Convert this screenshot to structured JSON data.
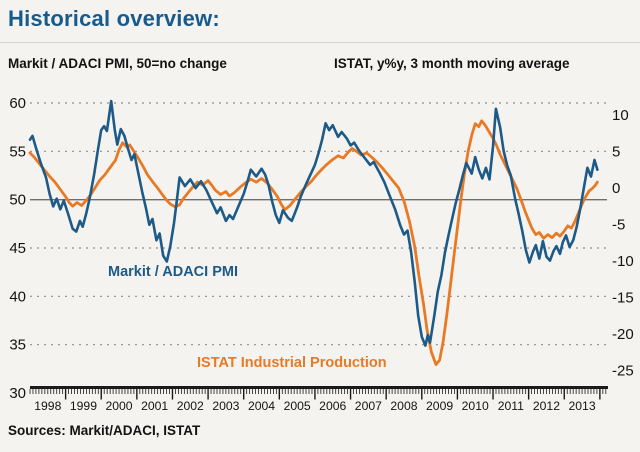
{
  "title": "Historical overview:",
  "subtitle_left": "Markit / ADACI PMI, 50=no change",
  "subtitle_right": "ISTAT, y%y, 3 month moving average",
  "footer": "Sources: Markit/ADACI, ISTAT",
  "colors": {
    "title": "#175a8c",
    "pmi_line": "#1d5a87",
    "istat_line": "#e87a26",
    "grid_dotted": "#8f8f8f",
    "grid_solid": "#6e6e6e",
    "axis": "#1a1a1a",
    "tick_text": "#141414",
    "background": "#f4f3f0"
  },
  "chart_data": {
    "type": "line",
    "title": "Historical overview",
    "xlabel": "",
    "ylabel_left": "Markit / ADACI PMI, 50=no change",
    "ylabel_right": "ISTAT, y%y, 3 month moving average",
    "grid": "horizontal-dotted",
    "legend_position": "inline-annotations",
    "x_axis": {
      "start": 1998.0,
      "end": 2014.2,
      "year_labels": [
        "1998",
        "1999",
        "2000",
        "2001",
        "2002",
        "2003",
        "2004",
        "2005",
        "2006",
        "2007",
        "2008",
        "2009",
        "2010",
        "2011",
        "2012",
        "2013"
      ]
    },
    "left_axis": {
      "ticks": [
        60,
        55,
        50,
        45,
        40,
        35,
        30
      ],
      "range": [
        30,
        60
      ],
      "gridlines_dotted": [
        60,
        55,
        45,
        40,
        35
      ],
      "gridline_solid": 50
    },
    "right_axis": {
      "ticks": [
        10,
        5,
        0,
        -5,
        -10,
        -15,
        -20,
        -25
      ],
      "range": [
        -25,
        10
      ],
      "top_value": 11.64,
      "bottom_value": -28.1
    },
    "series": [
      {
        "name": "Markit / ADACI PMI",
        "axis": "left",
        "color": "#1d5a87",
        "points": [
          [
            1998.0,
            56.2
          ],
          [
            1998.07,
            56.6
          ],
          [
            1998.18,
            55.2
          ],
          [
            1998.3,
            53.8
          ],
          [
            1998.45,
            52.3
          ],
          [
            1998.55,
            50.6
          ],
          [
            1998.65,
            49.3
          ],
          [
            1998.75,
            50.1
          ],
          [
            1998.85,
            49.0
          ],
          [
            1998.95,
            49.9
          ],
          [
            1999.08,
            48.4
          ],
          [
            1999.2,
            47.0
          ],
          [
            1999.3,
            46.7
          ],
          [
            1999.4,
            47.8
          ],
          [
            1999.48,
            47.2
          ],
          [
            1999.58,
            48.6
          ],
          [
            1999.68,
            50.2
          ],
          [
            1999.8,
            52.6
          ],
          [
            1999.9,
            55.0
          ],
          [
            2000.0,
            57.2
          ],
          [
            2000.08,
            57.6
          ],
          [
            2000.16,
            57.1
          ],
          [
            2000.28,
            60.2
          ],
          [
            2000.38,
            57.2
          ],
          [
            2000.45,
            55.7
          ],
          [
            2000.55,
            57.3
          ],
          [
            2000.65,
            56.6
          ],
          [
            2000.75,
            55.3
          ],
          [
            2000.85,
            54.1
          ],
          [
            2000.93,
            54.7
          ],
          [
            2001.05,
            52.6
          ],
          [
            2001.15,
            50.8
          ],
          [
            2001.25,
            49.2
          ],
          [
            2001.35,
            47.4
          ],
          [
            2001.44,
            48.0
          ],
          [
            2001.55,
            45.8
          ],
          [
            2001.64,
            46.5
          ],
          [
            2001.74,
            44.2
          ],
          [
            2001.84,
            43.6
          ],
          [
            2001.94,
            45.2
          ],
          [
            2002.04,
            47.5
          ],
          [
            2002.12,
            49.8
          ],
          [
            2002.2,
            52.3
          ],
          [
            2002.35,
            51.4
          ],
          [
            2002.5,
            52.1
          ],
          [
            2002.65,
            51.2
          ],
          [
            2002.8,
            51.9
          ],
          [
            2002.95,
            51.0
          ],
          [
            2003.1,
            49.8
          ],
          [
            2003.25,
            48.6
          ],
          [
            2003.35,
            49.2
          ],
          [
            2003.5,
            47.8
          ],
          [
            2003.6,
            48.4
          ],
          [
            2003.7,
            48.0
          ],
          [
            2003.85,
            49.3
          ],
          [
            2004.0,
            50.6
          ],
          [
            2004.1,
            51.8
          ],
          [
            2004.2,
            53.1
          ],
          [
            2004.35,
            52.4
          ],
          [
            2004.5,
            53.2
          ],
          [
            2004.6,
            52.6
          ],
          [
            2004.7,
            51.5
          ],
          [
            2004.8,
            49.8
          ],
          [
            2004.9,
            48.4
          ],
          [
            2005.0,
            47.6
          ],
          [
            2005.1,
            48.9
          ],
          [
            2005.25,
            48.1
          ],
          [
            2005.35,
            47.8
          ],
          [
            2005.5,
            49.2
          ],
          [
            2005.6,
            50.3
          ],
          [
            2005.7,
            51.2
          ],
          [
            2005.8,
            52.0
          ],
          [
            2005.9,
            52.8
          ],
          [
            2006.0,
            53.6
          ],
          [
            2006.1,
            54.8
          ],
          [
            2006.2,
            56.2
          ],
          [
            2006.3,
            57.9
          ],
          [
            2006.4,
            57.2
          ],
          [
            2006.5,
            57.7
          ],
          [
            2006.65,
            56.5
          ],
          [
            2006.75,
            57.0
          ],
          [
            2006.9,
            56.3
          ],
          [
            2007.0,
            55.6
          ],
          [
            2007.1,
            55.9
          ],
          [
            2007.25,
            55.0
          ],
          [
            2007.4,
            54.3
          ],
          [
            2007.55,
            53.6
          ],
          [
            2007.65,
            53.9
          ],
          [
            2007.8,
            52.9
          ],
          [
            2007.95,
            51.8
          ],
          [
            2008.1,
            50.4
          ],
          [
            2008.25,
            49.0
          ],
          [
            2008.4,
            47.3
          ],
          [
            2008.5,
            46.4
          ],
          [
            2008.6,
            46.8
          ],
          [
            2008.7,
            44.6
          ],
          [
            2008.8,
            41.5
          ],
          [
            2008.9,
            38.0
          ],
          [
            2009.0,
            35.8
          ],
          [
            2009.1,
            34.9
          ],
          [
            2009.17,
            36.0
          ],
          [
            2009.23,
            35.2
          ],
          [
            2009.35,
            38.0
          ],
          [
            2009.45,
            40.5
          ],
          [
            2009.55,
            42.2
          ],
          [
            2009.65,
            44.5
          ],
          [
            2009.75,
            46.3
          ],
          [
            2009.85,
            48.0
          ],
          [
            2009.95,
            49.6
          ],
          [
            2010.05,
            51.0
          ],
          [
            2010.15,
            52.5
          ],
          [
            2010.25,
            53.8
          ],
          [
            2010.4,
            52.7
          ],
          [
            2010.5,
            54.4
          ],
          [
            2010.6,
            53.1
          ],
          [
            2010.7,
            52.2
          ],
          [
            2010.8,
            53.3
          ],
          [
            2010.9,
            52.1
          ],
          [
            2011.0,
            55.5
          ],
          [
            2011.08,
            59.4
          ],
          [
            2011.2,
            57.5
          ],
          [
            2011.3,
            55.0
          ],
          [
            2011.4,
            53.5
          ],
          [
            2011.5,
            52.5
          ],
          [
            2011.62,
            50.1
          ],
          [
            2011.72,
            48.5
          ],
          [
            2011.82,
            46.8
          ],
          [
            2011.92,
            44.8
          ],
          [
            2012.02,
            43.5
          ],
          [
            2012.12,
            44.6
          ],
          [
            2012.2,
            45.3
          ],
          [
            2012.3,
            43.9
          ],
          [
            2012.4,
            45.7
          ],
          [
            2012.5,
            44.1
          ],
          [
            2012.6,
            43.7
          ],
          [
            2012.7,
            44.7
          ],
          [
            2012.78,
            45.2
          ],
          [
            2012.88,
            44.4
          ],
          [
            2012.96,
            45.6
          ],
          [
            2013.05,
            46.3
          ],
          [
            2013.15,
            45.1
          ],
          [
            2013.25,
            45.8
          ],
          [
            2013.35,
            47.2
          ],
          [
            2013.45,
            49.1
          ],
          [
            2013.55,
            51.2
          ],
          [
            2013.65,
            53.3
          ],
          [
            2013.75,
            52.4
          ],
          [
            2013.85,
            54.1
          ],
          [
            2013.93,
            53.1
          ]
        ]
      },
      {
        "name": "ISTAT Industrial Production",
        "axis": "right",
        "color": "#e87a26",
        "points": [
          [
            1998.0,
            4.8
          ],
          [
            1998.12,
            4.2
          ],
          [
            1998.25,
            3.4
          ],
          [
            1998.4,
            2.5
          ],
          [
            1998.55,
            1.6
          ],
          [
            1998.7,
            0.8
          ],
          [
            1998.85,
            -0.2
          ],
          [
            1999.0,
            -1.2
          ],
          [
            1999.1,
            -2.0
          ],
          [
            1999.2,
            -2.5
          ],
          [
            1999.32,
            -2.0
          ],
          [
            1999.45,
            -2.4
          ],
          [
            1999.6,
            -1.6
          ],
          [
            1999.72,
            -0.8
          ],
          [
            1999.85,
            0.2
          ],
          [
            1999.95,
            1.0
          ],
          [
            2000.1,
            1.8
          ],
          [
            2000.25,
            2.8
          ],
          [
            2000.4,
            3.8
          ],
          [
            2000.5,
            5.2
          ],
          [
            2000.6,
            6.2
          ],
          [
            2000.72,
            5.6
          ],
          [
            2000.8,
            5.9
          ],
          [
            2000.92,
            5.0
          ],
          [
            2001.05,
            4.0
          ],
          [
            2001.18,
            2.9
          ],
          [
            2001.3,
            1.8
          ],
          [
            2001.45,
            0.8
          ],
          [
            2001.58,
            0.0
          ],
          [
            2001.7,
            -0.8
          ],
          [
            2001.82,
            -1.6
          ],
          [
            2001.94,
            -2.2
          ],
          [
            2002.08,
            -2.6
          ],
          [
            2002.2,
            -2.3
          ],
          [
            2002.3,
            -1.5
          ],
          [
            2002.45,
            -0.6
          ],
          [
            2002.6,
            0.3
          ],
          [
            2002.7,
            0.8
          ],
          [
            2002.85,
            0.4
          ],
          [
            2003.0,
            1.0
          ],
          [
            2003.1,
            0.4
          ],
          [
            2003.2,
            -0.3
          ],
          [
            2003.35,
            -0.9
          ],
          [
            2003.5,
            -0.5
          ],
          [
            2003.6,
            -1.1
          ],
          [
            2003.75,
            -0.6
          ],
          [
            2003.9,
            0.1
          ],
          [
            2004.05,
            0.7
          ],
          [
            2004.2,
            1.2
          ],
          [
            2004.35,
            0.8
          ],
          [
            2004.5,
            1.3
          ],
          [
            2004.65,
            0.7
          ],
          [
            2004.8,
            -0.2
          ],
          [
            2004.95,
            -1.2
          ],
          [
            2005.05,
            -2.2
          ],
          [
            2005.15,
            -3.0
          ],
          [
            2005.3,
            -2.4
          ],
          [
            2005.45,
            -1.5
          ],
          [
            2005.6,
            -0.6
          ],
          [
            2005.75,
            0.2
          ],
          [
            2005.9,
            0.9
          ],
          [
            2006.05,
            1.8
          ],
          [
            2006.2,
            2.6
          ],
          [
            2006.35,
            3.3
          ],
          [
            2006.5,
            3.9
          ],
          [
            2006.65,
            4.4
          ],
          [
            2006.8,
            4.1
          ],
          [
            2006.95,
            5.0
          ],
          [
            2007.05,
            5.4
          ],
          [
            2007.2,
            4.9
          ],
          [
            2007.3,
            4.5
          ],
          [
            2007.45,
            4.8
          ],
          [
            2007.6,
            4.2
          ],
          [
            2007.75,
            3.5
          ],
          [
            2007.9,
            2.7
          ],
          [
            2008.05,
            1.8
          ],
          [
            2008.2,
            0.9
          ],
          [
            2008.35,
            0.0
          ],
          [
            2008.5,
            -1.8
          ],
          [
            2008.65,
            -4.5
          ],
          [
            2008.8,
            -8.0
          ],
          [
            2008.92,
            -12.0
          ],
          [
            2009.05,
            -16.0
          ],
          [
            2009.15,
            -19.5
          ],
          [
            2009.27,
            -22.5
          ],
          [
            2009.4,
            -24.2
          ],
          [
            2009.5,
            -23.6
          ],
          [
            2009.6,
            -21.0
          ],
          [
            2009.7,
            -17.5
          ],
          [
            2009.8,
            -13.5
          ],
          [
            2009.9,
            -9.5
          ],
          [
            2010.0,
            -5.5
          ],
          [
            2010.1,
            -1.5
          ],
          [
            2010.2,
            2.0
          ],
          [
            2010.3,
            5.0
          ],
          [
            2010.4,
            7.2
          ],
          [
            2010.5,
            8.8
          ],
          [
            2010.6,
            8.4
          ],
          [
            2010.68,
            9.2
          ],
          [
            2010.78,
            8.6
          ],
          [
            2010.9,
            7.6
          ],
          [
            2011.0,
            6.8
          ],
          [
            2011.1,
            5.8
          ],
          [
            2011.2,
            4.6
          ],
          [
            2011.32,
            3.4
          ],
          [
            2011.44,
            2.2
          ],
          [
            2011.56,
            1.0
          ],
          [
            2011.68,
            -0.2
          ],
          [
            2011.8,
            -1.8
          ],
          [
            2011.9,
            -3.2
          ],
          [
            2012.0,
            -4.4
          ],
          [
            2012.1,
            -5.6
          ],
          [
            2012.2,
            -6.4
          ],
          [
            2012.3,
            -6.1
          ],
          [
            2012.42,
            -6.9
          ],
          [
            2012.54,
            -6.4
          ],
          [
            2012.66,
            -6.8
          ],
          [
            2012.78,
            -6.2
          ],
          [
            2012.88,
            -6.6
          ],
          [
            2013.0,
            -5.9
          ],
          [
            2013.1,
            -5.2
          ],
          [
            2013.2,
            -5.5
          ],
          [
            2013.3,
            -4.6
          ],
          [
            2013.4,
            -3.4
          ],
          [
            2013.5,
            -2.2
          ],
          [
            2013.6,
            -1.2
          ],
          [
            2013.7,
            -0.4
          ],
          [
            2013.78,
            -0.1
          ],
          [
            2013.86,
            0.3
          ],
          [
            2013.93,
            0.8
          ]
        ]
      }
    ],
    "annotations": {
      "pmi_label": "Markit / ADACI PMI",
      "istat_label": "ISTAT Industrial Production"
    }
  }
}
